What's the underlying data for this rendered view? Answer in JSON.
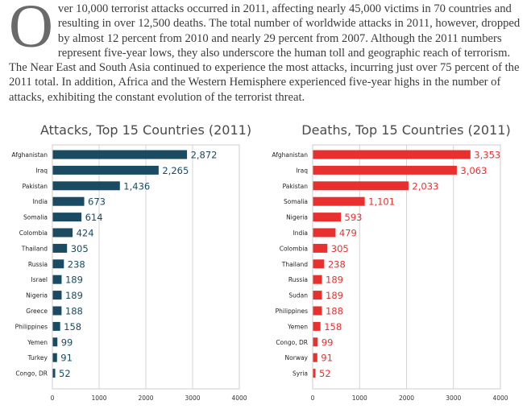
{
  "intro": {
    "dropcap": "O",
    "text": "ver 10,000 terrorist attacks occurred in 2011, affecting nearly 45,000 victims in 70 countries and resulting in over 12,500 deaths.  The total number of worldwide attacks in 2011, however, dropped by almost 12 percent from 2010 and nearly 29 percent from 2007.  Although the 2011 numbers represent five-year lows, they also underscore the human toll and geographic reach of terrorism. The Near East and South Asia continued to experience the most attacks, incurring just over 75 percent of the 2011 total.  In addition, Africa and the Western Hemisphere experienced five-year highs in the number of attacks, exhibiting the constant evolution of the terrorist threat."
  },
  "chart_data": [
    {
      "type": "bar",
      "orientation": "horizontal",
      "title": "Attacks, Top 15 Countries (2011)",
      "xlabel": "",
      "ylabel": "",
      "xlim": [
        0,
        4000
      ],
      "xticks": [
        0,
        1000,
        2000,
        3000,
        4000
      ],
      "tick_labels": [
        "0",
        "1000",
        "2000",
        "3000",
        "4000"
      ],
      "grid": true,
      "color": "#1a4b63",
      "categories": [
        "Afghanistan",
        "Iraq",
        "Pakistan",
        "India",
        "Somalia",
        "Colombia",
        "Thailand",
        "Russia",
        "Israel",
        "Nigeria",
        "Greece",
        "Philippines",
        "Yemen",
        "Turkey",
        "Congo, DR"
      ],
      "values": [
        2872,
        2265,
        1436,
        673,
        614,
        424,
        305,
        238,
        189,
        189,
        188,
        158,
        99,
        91,
        52
      ],
      "value_labels": [
        "2,872",
        "2,265",
        "1,436",
        "673",
        "614",
        "424",
        "305",
        "238",
        "189",
        "189",
        "188",
        "158",
        "99",
        "91",
        "52"
      ]
    },
    {
      "type": "bar",
      "orientation": "horizontal",
      "title": "Deaths, Top 15 Countries (2011)",
      "xlabel": "",
      "ylabel": "",
      "xlim": [
        0,
        4000
      ],
      "xticks": [
        0,
        1000,
        2000,
        3000,
        4000
      ],
      "tick_labels": [
        "0",
        "1000",
        "2000",
        "3000",
        "4000"
      ],
      "grid": true,
      "color": "#e8302f",
      "categories": [
        "Afghanistan",
        "Iraq",
        "Pakistan",
        "Somalia",
        "Nigeria",
        "India",
        "Colombia",
        "Thailand",
        "Russia",
        "Sudan",
        "Philippines",
        "Yemen",
        "Congo, DR",
        "Norway",
        "Syria"
      ],
      "values": [
        3353,
        3063,
        2033,
        1101,
        593,
        479,
        305,
        238,
        189,
        189,
        188,
        158,
        99,
        91,
        52
      ],
      "value_labels": [
        "3,353",
        "3,063",
        "2,033",
        "1,101",
        "593",
        "479",
        "305",
        "238",
        "189",
        "189",
        "188",
        "158",
        "99",
        "91",
        "52"
      ]
    }
  ]
}
